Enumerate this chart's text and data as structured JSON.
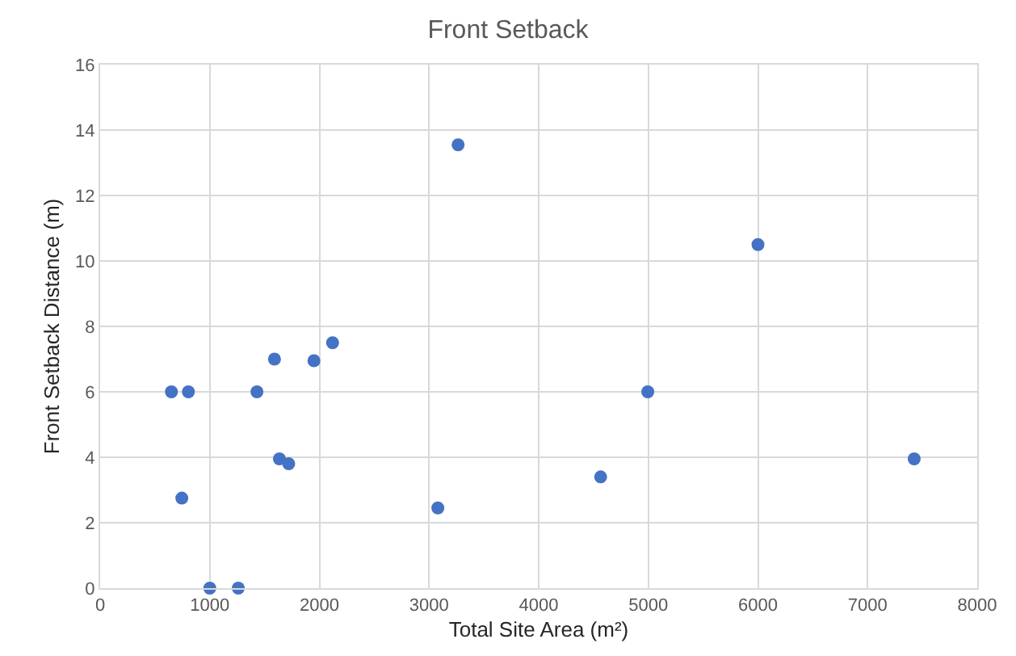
{
  "chart_data": {
    "type": "scatter",
    "title": "Front Setback",
    "xlabel": "Total Site Area (m²)",
    "ylabel": "Front Setback Distance (m)",
    "x": [
      650,
      805,
      745,
      1000,
      1260,
      1430,
      1590,
      1635,
      1720,
      1950,
      2120,
      3080,
      3265,
      4565,
      4995,
      6000,
      7425
    ],
    "series": [
      {
        "color": "#4472c4",
        "values": [
          6.0,
          6.0,
          2.75,
          0,
          0,
          6.0,
          7.0,
          3.95,
          3.8,
          6.95,
          7.5,
          2.45,
          13.55,
          3.4,
          6.0,
          10.5,
          3.95
        ]
      }
    ],
    "xlim": [
      0,
      8000
    ],
    "xticks": [
      0,
      1000,
      2000,
      3000,
      4000,
      5000,
      6000,
      7000,
      8000
    ],
    "ylim": [
      0,
      16
    ],
    "yticks": [
      0,
      2,
      4,
      6,
      8,
      10,
      12,
      14,
      16
    ],
    "grid": true,
    "marker": "circle"
  }
}
